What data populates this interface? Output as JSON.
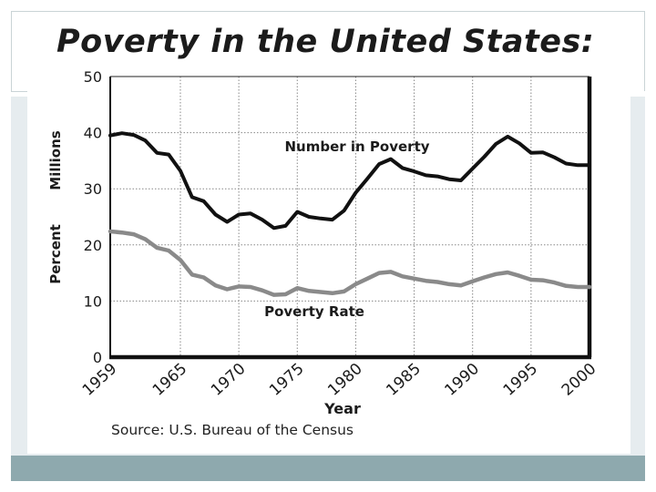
{
  "chart_data": {
    "type": "line",
    "title": "Poverty in the United States:",
    "xlabel": "Year",
    "ylabel_top": "Millions",
    "ylabel_bottom": "Percent",
    "source": "Source: U.S. Bureau of the Census",
    "xlim": [
      1959,
      2000
    ],
    "ylim": [
      0,
      50
    ],
    "x_ticks": [
      1959,
      1965,
      1970,
      1975,
      1980,
      1985,
      1990,
      1995,
      2000
    ],
    "x_tick_labels": [
      "1959",
      "1965",
      "1970",
      "1975",
      "1980",
      "1985",
      "1990",
      "1995",
      "2000"
    ],
    "y_ticks": [
      0,
      10,
      20,
      30,
      40,
      50
    ],
    "y_tick_labels": [
      "0",
      "10",
      "20",
      "30",
      "40",
      "50"
    ],
    "grid": true,
    "series": [
      {
        "name": "Number in Poverty",
        "color": "#111111",
        "x": [
          1959,
          1960,
          1961,
          1962,
          1963,
          1964,
          1965,
          1966,
          1967,
          1968,
          1969,
          1970,
          1971,
          1972,
          1973,
          1974,
          1975,
          1976,
          1977,
          1978,
          1979,
          1980,
          1981,
          1982,
          1983,
          1984,
          1985,
          1986,
          1987,
          1988,
          1989,
          1990,
          1991,
          1992,
          1993,
          1994,
          1995,
          1996,
          1997,
          1998,
          1999,
          2000
        ],
        "values": [
          39.5,
          39.9,
          39.6,
          38.6,
          36.4,
          36.1,
          33.2,
          28.5,
          27.8,
          25.4,
          24.1,
          25.4,
          25.6,
          24.5,
          23.0,
          23.4,
          25.9,
          25.0,
          24.7,
          24.5,
          26.1,
          29.3,
          31.8,
          34.4,
          35.3,
          33.7,
          33.1,
          32.4,
          32.2,
          31.7,
          31.5,
          33.6,
          35.7,
          38.0,
          39.3,
          38.1,
          36.4,
          36.5,
          35.6,
          34.5,
          34.2,
          34.2
        ]
      },
      {
        "name": "Poverty Rate",
        "color": "#8a8a8a",
        "x": [
          1959,
          1960,
          1961,
          1962,
          1963,
          1964,
          1965,
          1966,
          1967,
          1968,
          1969,
          1970,
          1971,
          1972,
          1973,
          1974,
          1975,
          1976,
          1977,
          1978,
          1979,
          1980,
          1981,
          1982,
          1983,
          1984,
          1985,
          1986,
          1987,
          1988,
          1989,
          1990,
          1991,
          1992,
          1993,
          1994,
          1995,
          1996,
          1997,
          1998,
          1999,
          2000
        ],
        "values": [
          22.4,
          22.2,
          21.9,
          21.0,
          19.5,
          19.0,
          17.3,
          14.7,
          14.2,
          12.8,
          12.1,
          12.6,
          12.5,
          11.9,
          11.1,
          11.2,
          12.3,
          11.8,
          11.6,
          11.4,
          11.7,
          13.0,
          14.0,
          15.0,
          15.2,
          14.4,
          14.0,
          13.6,
          13.4,
          13.0,
          12.8,
          13.5,
          14.2,
          14.8,
          15.1,
          14.5,
          13.8,
          13.7,
          13.3,
          12.7,
          12.5,
          12.5
        ]
      }
    ],
    "annotations": [
      {
        "text": "Number in Poverty",
        "series": "Number in Poverty"
      },
      {
        "text": "Poverty Rate",
        "series": "Poverty Rate"
      }
    ]
  }
}
